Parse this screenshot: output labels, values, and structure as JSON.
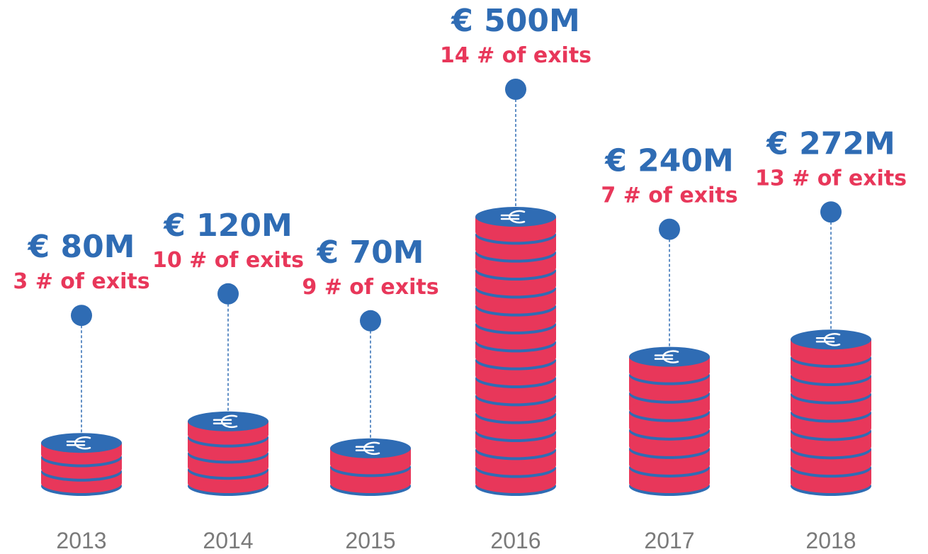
{
  "chart_data": {
    "type": "coin-stack",
    "categories": [
      "2013",
      "2014",
      "2015",
      "2016",
      "2017",
      "2018"
    ],
    "values": [
      80,
      120,
      70,
      500,
      240,
      272
    ],
    "value_labels": [
      "€ 80M",
      "€ 120M",
      "€ 70M",
      "€ 500M",
      "€ 240M",
      "€ 272M"
    ],
    "exits_labels": [
      "3 # of exits",
      "10 # of exits",
      "9 # of exits",
      "14 # of exits",
      "7 # of exits",
      "13 # of exits"
    ],
    "color": "#e8375a",
    "rim_color": "#2f6cb4"
  }
}
